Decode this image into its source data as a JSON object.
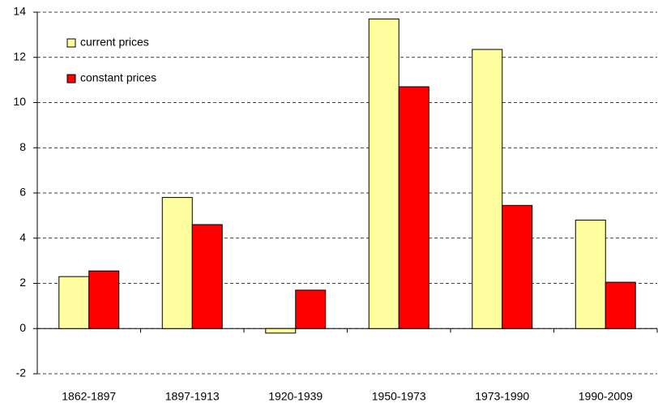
{
  "chart_data": {
    "type": "bar",
    "categories": [
      "1862-1897",
      "1897-1913",
      "1920-1939",
      "1950-1973",
      "1973-1990",
      "1990-2009"
    ],
    "series": [
      {
        "name": "current prices",
        "color": "#ffffa0",
        "values": [
          2.3,
          5.8,
          -0.2,
          13.7,
          12.35,
          4.8
        ]
      },
      {
        "name": "constant prices",
        "color": "#ff0000",
        "values": [
          2.55,
          4.6,
          1.7,
          10.7,
          5.45,
          2.05
        ]
      }
    ],
    "ylim": [
      -2,
      14
    ],
    "yticks": [
      -2,
      0,
      2,
      4,
      6,
      8,
      10,
      12,
      14
    ],
    "grid": true,
    "legend": "upper left"
  }
}
